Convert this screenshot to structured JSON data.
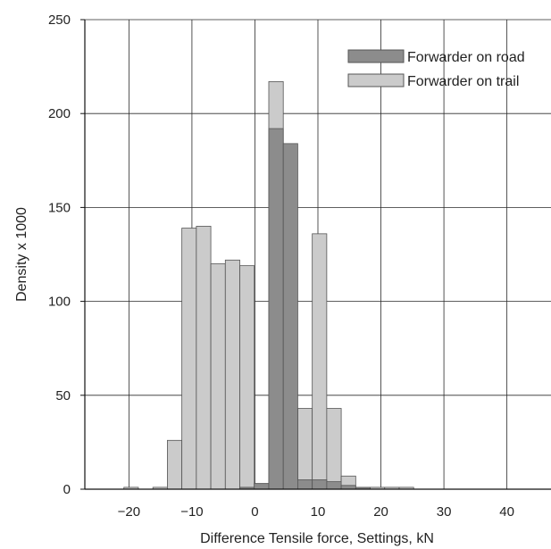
{
  "chart_data": {
    "type": "bar",
    "subtype": "overlapping-histogram",
    "title": "",
    "xlabel": "Difference Tensile force, Settings, kN",
    "ylabel": "Density x 1000",
    "xlim": [
      -27,
      47
    ],
    "ylim": [
      0,
      250
    ],
    "xticks": [
      -20,
      -10,
      0,
      10,
      20,
      30,
      40
    ],
    "yticks": [
      0,
      50,
      100,
      150,
      200,
      250
    ],
    "xtick_labels": [
      "−20",
      "−10",
      "0",
      "10",
      "20",
      "30",
      "40"
    ],
    "ytick_labels": [
      "0",
      "50",
      "100",
      "150",
      "200",
      "250"
    ],
    "grid": true,
    "legend_position": "top-right",
    "bin_width": 2.3,
    "bin_starts": [
      -20.8,
      -18.5,
      -16.2,
      -13.9,
      -11.6,
      -9.3,
      -7.0,
      -4.7,
      -2.4,
      -0.1,
      2.2,
      4.5,
      6.8,
      9.1,
      11.4,
      13.7,
      16.0,
      18.3,
      20.6,
      22.9,
      25.2
    ],
    "series": [
      {
        "name": "Forwarder on road",
        "color": "#8c8c8c",
        "values": [
          0,
          0,
          0,
          0,
          0,
          0,
          0,
          0,
          1,
          3,
          192,
          184,
          5,
          5,
          4,
          2,
          1,
          0,
          0,
          0,
          0
        ]
      },
      {
        "name": "Forwarder on trail",
        "color": "#cbcbcb",
        "values": [
          1,
          0,
          1,
          26,
          139,
          140,
          120,
          122,
          119,
          3,
          217,
          0,
          43,
          136,
          43,
          7,
          1,
          1,
          1,
          1,
          0
        ]
      }
    ]
  }
}
